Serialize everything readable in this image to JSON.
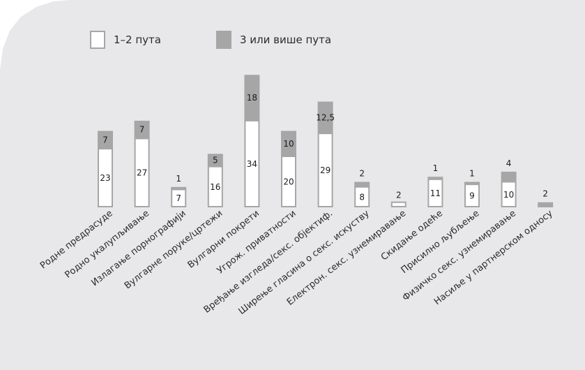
{
  "chart_data": {
    "type": "bar",
    "stacked": true,
    "legend_position": "top-left",
    "grid": false,
    "title": "",
    "xlabel": "",
    "ylabel": "",
    "ylim": [
      0,
      55
    ],
    "categories": [
      "Родне предрасуде",
      "Родно укалупљивање",
      "Излагање порнографији",
      "Вулгарне поруке/цртежи",
      "Вулгарни покрети",
      "Угрож. приватности",
      "Вређање изгледа/секс. објектиф.",
      "Ширење гласина о секс. искуству",
      "Електрон. секс. узнемиравање",
      "Скидање одеће",
      "Присилно љубљење",
      "Физичко секс. узнемиравање",
      "Насиље у партнерском односу"
    ],
    "series": [
      {
        "name": "1–2 пута",
        "color": "#ffffff",
        "values": [
          23,
          27,
          7,
          16,
          34,
          20,
          29,
          8,
          2,
          11,
          9,
          10,
          0
        ],
        "labels": [
          "23",
          "27",
          "7",
          "16",
          "34",
          "20",
          "29",
          "8",
          "2",
          "11",
          "9",
          "10",
          ""
        ]
      },
      {
        "name": "3 или више пута",
        "color": "#a6a6a6",
        "values": [
          7,
          7,
          1,
          5,
          18,
          10,
          12.5,
          2,
          0,
          1,
          1,
          4,
          2
        ],
        "labels": [
          "7",
          "7",
          "1",
          "5",
          "18",
          "10",
          "12,5",
          "2",
          "",
          "1",
          "1",
          "4",
          "2"
        ]
      }
    ]
  },
  "colors": {
    "panel_background": "#e8e8ea",
    "bar_border": "#a6a6a6",
    "bar_light": "#ffffff",
    "bar_dark": "#a6a6a6"
  }
}
